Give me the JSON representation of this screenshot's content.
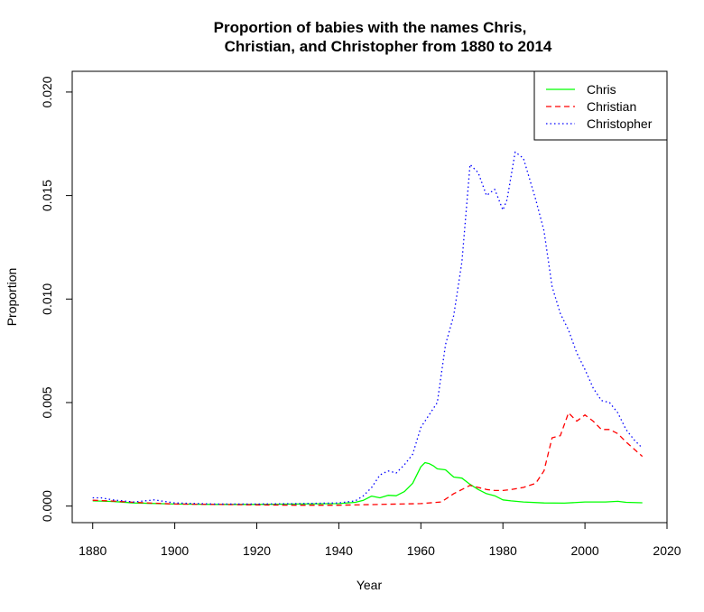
{
  "chart_data": {
    "type": "line",
    "title_lines": [
      "Proportion of babies with the names Chris,",
      "Christian, and Christopher from 1880 to 2014"
    ],
    "xlabel": "Year",
    "ylabel": "Proportion",
    "xlim": [
      1875,
      2020
    ],
    "ylim": [
      -0.0008,
      0.021
    ],
    "x_ticks": [
      1880,
      1900,
      1920,
      1940,
      1960,
      1980,
      2000,
      2020
    ],
    "y_ticks": [
      0.0,
      0.005,
      0.01,
      0.015,
      0.02
    ],
    "y_tick_labels": [
      "0.000",
      "0.005",
      "0.010",
      "0.015",
      "0.020"
    ],
    "legend_position": "top-right",
    "series": [
      {
        "name": "Chris",
        "color": "#00ff00",
        "dash": "solid",
        "x": [
          1880,
          1885,
          1890,
          1900,
          1910,
          1920,
          1930,
          1940,
          1944,
          1946,
          1948,
          1950,
          1952,
          1954,
          1956,
          1958,
          1960,
          1961,
          1962,
          1963,
          1964,
          1966,
          1968,
          1970,
          1972,
          1974,
          1976,
          1978,
          1980,
          1982,
          1985,
          1990,
          1995,
          2000,
          2005,
          2008,
          2010,
          2014
        ],
        "y": [
          0.00025,
          0.00022,
          0.00015,
          0.0001,
          8e-05,
          8e-05,
          0.0001,
          0.00012,
          0.00018,
          0.00028,
          0.00048,
          0.0004,
          0.00052,
          0.0005,
          0.0007,
          0.0011,
          0.0019,
          0.0021,
          0.00205,
          0.00195,
          0.0018,
          0.00175,
          0.0014,
          0.00135,
          0.00105,
          0.0008,
          0.0006,
          0.0005,
          0.0003,
          0.00025,
          0.0002,
          0.00015,
          0.00014,
          0.0002,
          0.0002,
          0.00023,
          0.00018,
          0.00016
        ]
      },
      {
        "name": "Christian",
        "color": "#ff0000",
        "dash": "dashed",
        "x": [
          1880,
          1885,
          1890,
          1900,
          1910,
          1920,
          1930,
          1940,
          1950,
          1960,
          1965,
          1968,
          1970,
          1972,
          1974,
          1976,
          1978,
          1980,
          1982,
          1985,
          1988,
          1990,
          1992,
          1994,
          1996,
          1998,
          2000,
          2002,
          2004,
          2006,
          2008,
          2010,
          2014
        ],
        "y": [
          0.00028,
          0.00024,
          0.00018,
          0.0001,
          8e-05,
          6e-05,
          4e-05,
          4e-05,
          8e-05,
          0.00012,
          0.0002,
          0.0006,
          0.0008,
          0.001,
          0.0009,
          0.0008,
          0.00075,
          0.00075,
          0.0008,
          0.0009,
          0.0011,
          0.0017,
          0.0033,
          0.0034,
          0.0045,
          0.0041,
          0.0044,
          0.0041,
          0.0037,
          0.0037,
          0.0035,
          0.0031,
          0.0024
        ]
      },
      {
        "name": "Christopher",
        "color": "#0000ff",
        "dash": "dotted",
        "x": [
          1880,
          1882,
          1885,
          1890,
          1895,
          1900,
          1910,
          1920,
          1930,
          1940,
          1944,
          1946,
          1948,
          1950,
          1952,
          1954,
          1956,
          1958,
          1960,
          1962,
          1964,
          1966,
          1968,
          1970,
          1972,
          1974,
          1976,
          1978,
          1980,
          1981,
          1983,
          1985,
          1988,
          1990,
          1992,
          1994,
          1996,
          1998,
          2000,
          2002,
          2004,
          2006,
          2008,
          2010,
          2012,
          2014
        ],
        "y": [
          0.0004,
          0.0004,
          0.0003,
          0.0002,
          0.0003,
          0.00015,
          0.0001,
          0.0001,
          0.00012,
          0.00015,
          0.00025,
          0.0005,
          0.0009,
          0.0015,
          0.0017,
          0.0016,
          0.002,
          0.0025,
          0.0038,
          0.0044,
          0.005,
          0.0078,
          0.0092,
          0.0118,
          0.0165,
          0.0161,
          0.015,
          0.0153,
          0.0143,
          0.0148,
          0.0171,
          0.0168,
          0.0148,
          0.0133,
          0.0106,
          0.0093,
          0.0085,
          0.0074,
          0.0066,
          0.0057,
          0.0051,
          0.005,
          0.0045,
          0.0037,
          0.0032,
          0.0028
        ]
      }
    ]
  }
}
